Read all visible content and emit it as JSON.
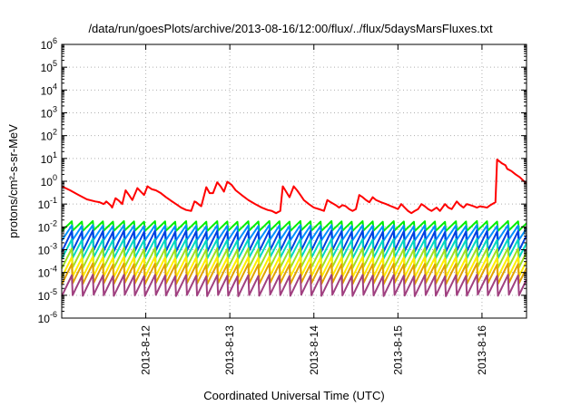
{
  "chart_data": {
    "type": "line",
    "title": "/data/run/goesPlots/archive/2013-08-16/12:00/flux/../flux/5daysMarsFluxes.txt",
    "xlabel": "Coordinated Universal Time (UTC)",
    "ylabel": "protons/cm²-s-sr-MeV",
    "yscale": "log",
    "ylim": [
      1e-06,
      1000000.0
    ],
    "ytick_exponents": [
      -6,
      -5,
      -4,
      -3,
      -2,
      -1,
      0,
      1,
      2,
      3,
      4,
      5,
      6
    ],
    "xlim": [
      0,
      5.53
    ],
    "x_unit": "days from 2013-08-11 00:00 UTC (range start)",
    "xticks": [
      {
        "x": 1,
        "label": "2013-8-12"
      },
      {
        "x": 2,
        "label": "2013-8-13"
      },
      {
        "x": 3,
        "label": "2013-8-14"
      },
      {
        "x": 4,
        "label": "2013-8-15"
      },
      {
        "x": 5,
        "label": "2013-8-16"
      }
    ],
    "grid": true,
    "series": [
      {
        "color": "#ff0000",
        "points": [
          [
            0.0,
            0.6
          ],
          [
            0.1,
            0.4
          ],
          [
            0.2,
            0.25
          ],
          [
            0.3,
            0.16
          ],
          [
            0.4,
            0.13
          ],
          [
            0.45,
            0.12
          ],
          [
            0.5,
            0.1
          ],
          [
            0.53,
            0.13
          ],
          [
            0.58,
            0.09
          ],
          [
            0.6,
            0.07
          ],
          [
            0.64,
            0.18
          ],
          [
            0.68,
            0.14
          ],
          [
            0.72,
            0.1
          ],
          [
            0.76,
            0.4
          ],
          [
            0.8,
            0.25
          ],
          [
            0.84,
            0.15
          ],
          [
            0.9,
            0.5
          ],
          [
            0.94,
            0.35
          ],
          [
            0.98,
            0.25
          ],
          [
            1.02,
            0.6
          ],
          [
            1.07,
            0.45
          ],
          [
            1.12,
            0.4
          ],
          [
            1.18,
            0.3
          ],
          [
            1.24,
            0.2
          ],
          [
            1.3,
            0.14
          ],
          [
            1.36,
            0.1
          ],
          [
            1.42,
            0.07
          ],
          [
            1.48,
            0.055
          ],
          [
            1.54,
            0.05
          ],
          [
            1.58,
            0.13
          ],
          [
            1.6,
            0.12
          ],
          [
            1.64,
            0.09
          ],
          [
            1.66,
            0.08
          ],
          [
            1.72,
            0.55
          ],
          [
            1.76,
            0.3
          ],
          [
            1.8,
            0.3
          ],
          [
            1.85,
            0.9
          ],
          [
            1.89,
            0.6
          ],
          [
            1.93,
            0.35
          ],
          [
            1.97,
            0.95
          ],
          [
            2.02,
            0.7
          ],
          [
            2.07,
            0.4
          ],
          [
            2.14,
            0.25
          ],
          [
            2.22,
            0.15
          ],
          [
            2.3,
            0.1
          ],
          [
            2.38,
            0.07
          ],
          [
            2.45,
            0.055
          ],
          [
            2.5,
            0.05
          ],
          [
            2.55,
            0.04
          ],
          [
            2.6,
            0.05
          ],
          [
            2.63,
            0.6
          ],
          [
            2.67,
            0.35
          ],
          [
            2.71,
            0.2
          ],
          [
            2.76,
            0.6
          ],
          [
            2.8,
            0.4
          ],
          [
            2.84,
            0.25
          ],
          [
            2.88,
            0.15
          ],
          [
            2.94,
            0.1
          ],
          [
            3.0,
            0.07
          ],
          [
            3.06,
            0.06
          ],
          [
            3.12,
            0.05
          ],
          [
            3.16,
            0.15
          ],
          [
            3.2,
            0.12
          ],
          [
            3.26,
            0.09
          ],
          [
            3.3,
            0.07
          ],
          [
            3.34,
            0.09
          ],
          [
            3.38,
            0.08
          ],
          [
            3.42,
            0.06
          ],
          [
            3.46,
            0.05
          ],
          [
            3.5,
            0.06
          ],
          [
            3.54,
            0.25
          ],
          [
            3.58,
            0.2
          ],
          [
            3.62,
            0.15
          ],
          [
            3.66,
            0.12
          ],
          [
            3.7,
            0.2
          ],
          [
            3.74,
            0.15
          ],
          [
            3.8,
            0.12
          ],
          [
            3.86,
            0.1
          ],
          [
            3.92,
            0.08
          ],
          [
            3.96,
            0.07
          ],
          [
            4.0,
            0.06
          ],
          [
            4.04,
            0.1
          ],
          [
            4.08,
            0.07
          ],
          [
            4.12,
            0.05
          ],
          [
            4.16,
            0.04
          ],
          [
            4.2,
            0.05
          ],
          [
            4.24,
            0.06
          ],
          [
            4.28,
            0.1
          ],
          [
            4.32,
            0.08
          ],
          [
            4.36,
            0.06
          ],
          [
            4.4,
            0.05
          ],
          [
            4.46,
            0.07
          ],
          [
            4.5,
            0.05
          ],
          [
            4.56,
            0.1
          ],
          [
            4.6,
            0.07
          ],
          [
            4.64,
            0.06
          ],
          [
            4.7,
            0.13
          ],
          [
            4.74,
            0.09
          ],
          [
            4.78,
            0.07
          ],
          [
            4.82,
            0.1
          ],
          [
            4.86,
            0.09
          ],
          [
            4.9,
            0.08
          ],
          [
            4.94,
            0.07
          ],
          [
            4.98,
            0.08
          ],
          [
            5.06,
            0.07
          ],
          [
            5.1,
            0.09
          ],
          [
            5.16,
            0.12
          ],
          [
            5.18,
            9
          ],
          [
            5.24,
            6
          ],
          [
            5.28,
            5
          ],
          [
            5.3,
            3.5
          ],
          [
            5.35,
            2.8
          ],
          [
            5.4,
            2.0
          ],
          [
            5.45,
            1.5
          ],
          [
            5.5,
            1.0
          ],
          [
            5.53,
            0.8
          ]
        ]
      },
      {
        "color": "#00ee00",
        "baseline": 0.0065,
        "peak": 0.018,
        "period": 0.1235
      },
      {
        "color": "#0090ff",
        "baseline": 0.0025,
        "peak": 0.012,
        "period": 0.1235
      },
      {
        "color": "#0040e0",
        "baseline": 0.0008,
        "peak": 0.007,
        "period": 0.1235
      },
      {
        "color": "#00d8c0",
        "baseline": 0.0004,
        "peak": 0.003,
        "period": 0.1235
      },
      {
        "color": "#a0e020",
        "baseline": 0.00015,
        "peak": 0.0012,
        "period": 0.1235
      },
      {
        "color": "#ffee00",
        "baseline": 6e-05,
        "peak": 0.0005,
        "period": 0.1235
      },
      {
        "color": "#e0a000",
        "baseline": 3e-05,
        "peak": 0.00025,
        "period": 0.1235
      },
      {
        "color": "#a04080",
        "baseline": 9e-06,
        "peak": 8e-05,
        "period": 0.1235
      }
    ]
  }
}
